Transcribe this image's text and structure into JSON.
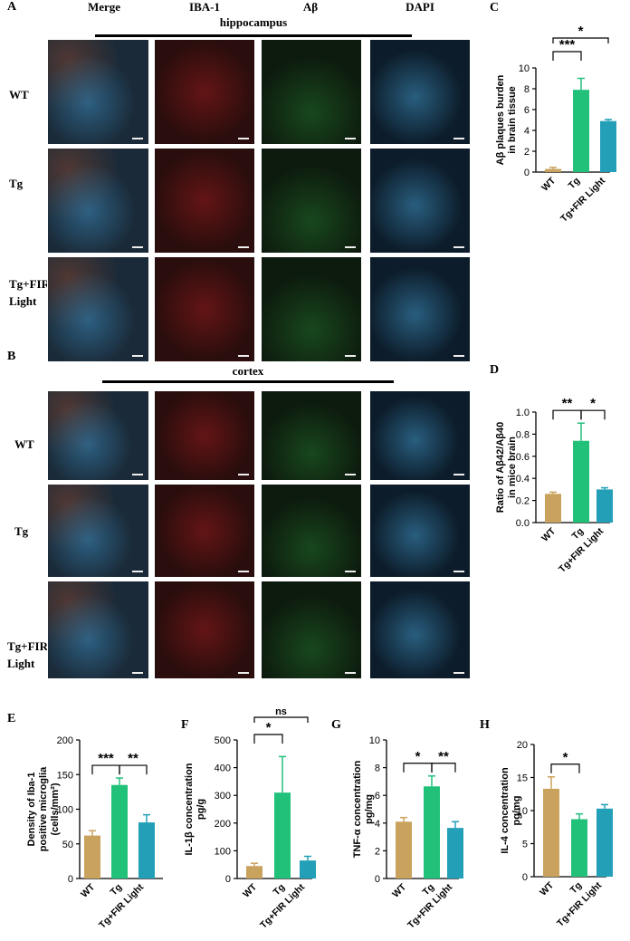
{
  "panel_letters": {
    "A": "A",
    "B": "B",
    "C": "C",
    "D": "D",
    "E": "E",
    "F": "F",
    "G": "G",
    "H": "H"
  },
  "channel_headers": [
    "Merge",
    "IBA-1",
    "Aβ",
    "DAPI"
  ],
  "section_titles": {
    "hippocampus": "hippocampus",
    "cortex": "cortex"
  },
  "row_labels": {
    "hippocampus": [
      [
        "WT"
      ],
      [
        "Tg"
      ],
      [
        "Tg+FIR",
        "Light"
      ]
    ],
    "cortex": [
      [
        "WT"
      ],
      [
        "Tg"
      ],
      [
        "Tg+FIR",
        "Light"
      ]
    ]
  },
  "colors": {
    "wt": "#c9a25e",
    "tg": "#22c17a",
    "fir": "#23a0b8",
    "merge": "#1a2a38",
    "iba1": "#2a0d0d",
    "abeta": "#0d1a0e",
    "dapi": "#0c1c2a"
  },
  "icons": [
    "scale-bar-icon"
  ],
  "chart_data": [
    {
      "id": "C",
      "type": "bar",
      "categories": [
        "WT",
        "Tg",
        "Tg+FIR Light"
      ],
      "values": [
        0.3,
        7.9,
        4.9
      ],
      "errors": [
        0.15,
        1.1,
        0.15
      ],
      "ylabel": [
        "Aβ plaques burden",
        "in brain tissue"
      ],
      "ylim": [
        0,
        10
      ],
      "yticks": [
        "0",
        "2",
        "4",
        "6",
        "8",
        "10"
      ],
      "significance": [
        {
          "from": 0,
          "to": 1,
          "label": "***"
        },
        {
          "from": 0,
          "to": 2,
          "label": "*"
        }
      ]
    },
    {
      "id": "D",
      "type": "bar",
      "categories": [
        "WT",
        "Tg",
        "Tg+FIR Light"
      ],
      "values": [
        0.26,
        0.74,
        0.3
      ],
      "errors": [
        0.015,
        0.16,
        0.015
      ],
      "ylabel": [
        "Ratio of Aβ42/Aβ40",
        "in mice brain"
      ],
      "ylim": [
        0,
        1.0
      ],
      "yticks": [
        "0.0",
        "0.2",
        "0.4",
        "0.6",
        "0.8",
        "1.0"
      ],
      "significance": [
        {
          "from": 0,
          "to": 1,
          "label": "**"
        },
        {
          "from": 1,
          "to": 2,
          "label": "*"
        }
      ]
    },
    {
      "id": "E",
      "type": "bar",
      "categories": [
        "WT",
        "Tg",
        "Tg+FIR Light"
      ],
      "values": [
        62,
        135,
        81
      ],
      "errors": [
        7,
        10,
        11
      ],
      "ylabel": [
        "Density of Iba-1",
        "positive microglia",
        "(cells/mm²)"
      ],
      "ylim": [
        0,
        200
      ],
      "yticks": [
        "0",
        "50",
        "100",
        "150",
        "200"
      ],
      "significance": [
        {
          "from": 0,
          "to": 1,
          "label": "***"
        },
        {
          "from": 1,
          "to": 2,
          "label": "**"
        }
      ]
    },
    {
      "id": "F",
      "type": "bar",
      "categories": [
        "WT",
        "Tg",
        "Tg+FIR Light"
      ],
      "values": [
        45,
        310,
        65
      ],
      "errors": [
        10,
        130,
        15
      ],
      "ylabel": [
        "IL-1β concentration",
        "pg/g"
      ],
      "ylim": [
        0,
        500
      ],
      "yticks": [
        "0",
        "100",
        "200",
        "300",
        "400",
        "500"
      ],
      "significance": [
        {
          "from": 0,
          "to": 1,
          "label": "*"
        },
        {
          "from": 0,
          "to": 2,
          "label": "ns"
        }
      ]
    },
    {
      "id": "G",
      "type": "bar",
      "categories": [
        "WT",
        "Tg",
        "Tg+FIR Light"
      ],
      "values": [
        4.1,
        6.65,
        3.65
      ],
      "errors": [
        0.3,
        0.75,
        0.45
      ],
      "ylabel": [
        "TNF-α concentration",
        "pg/mg"
      ],
      "ylim": [
        0,
        10
      ],
      "yticks": [
        "0",
        "2",
        "4",
        "6",
        "8",
        "10"
      ],
      "significance": [
        {
          "from": 0,
          "to": 1,
          "label": "*"
        },
        {
          "from": 1,
          "to": 2,
          "label": "**"
        }
      ]
    },
    {
      "id": "H",
      "type": "bar",
      "categories": [
        "WT",
        "Tg",
        "Tg+FIR Light"
      ],
      "values": [
        13.3,
        8.7,
        10.3
      ],
      "errors": [
        1.8,
        0.8,
        0.6
      ],
      "ylabel": [
        "IL-4 concentration",
        "pg/mg"
      ],
      "ylim": [
        0,
        20
      ],
      "yticks": [
        "0",
        "5",
        "10",
        "15",
        "20"
      ],
      "significance": [
        {
          "from": 0,
          "to": 1,
          "label": "*"
        }
      ]
    }
  ]
}
